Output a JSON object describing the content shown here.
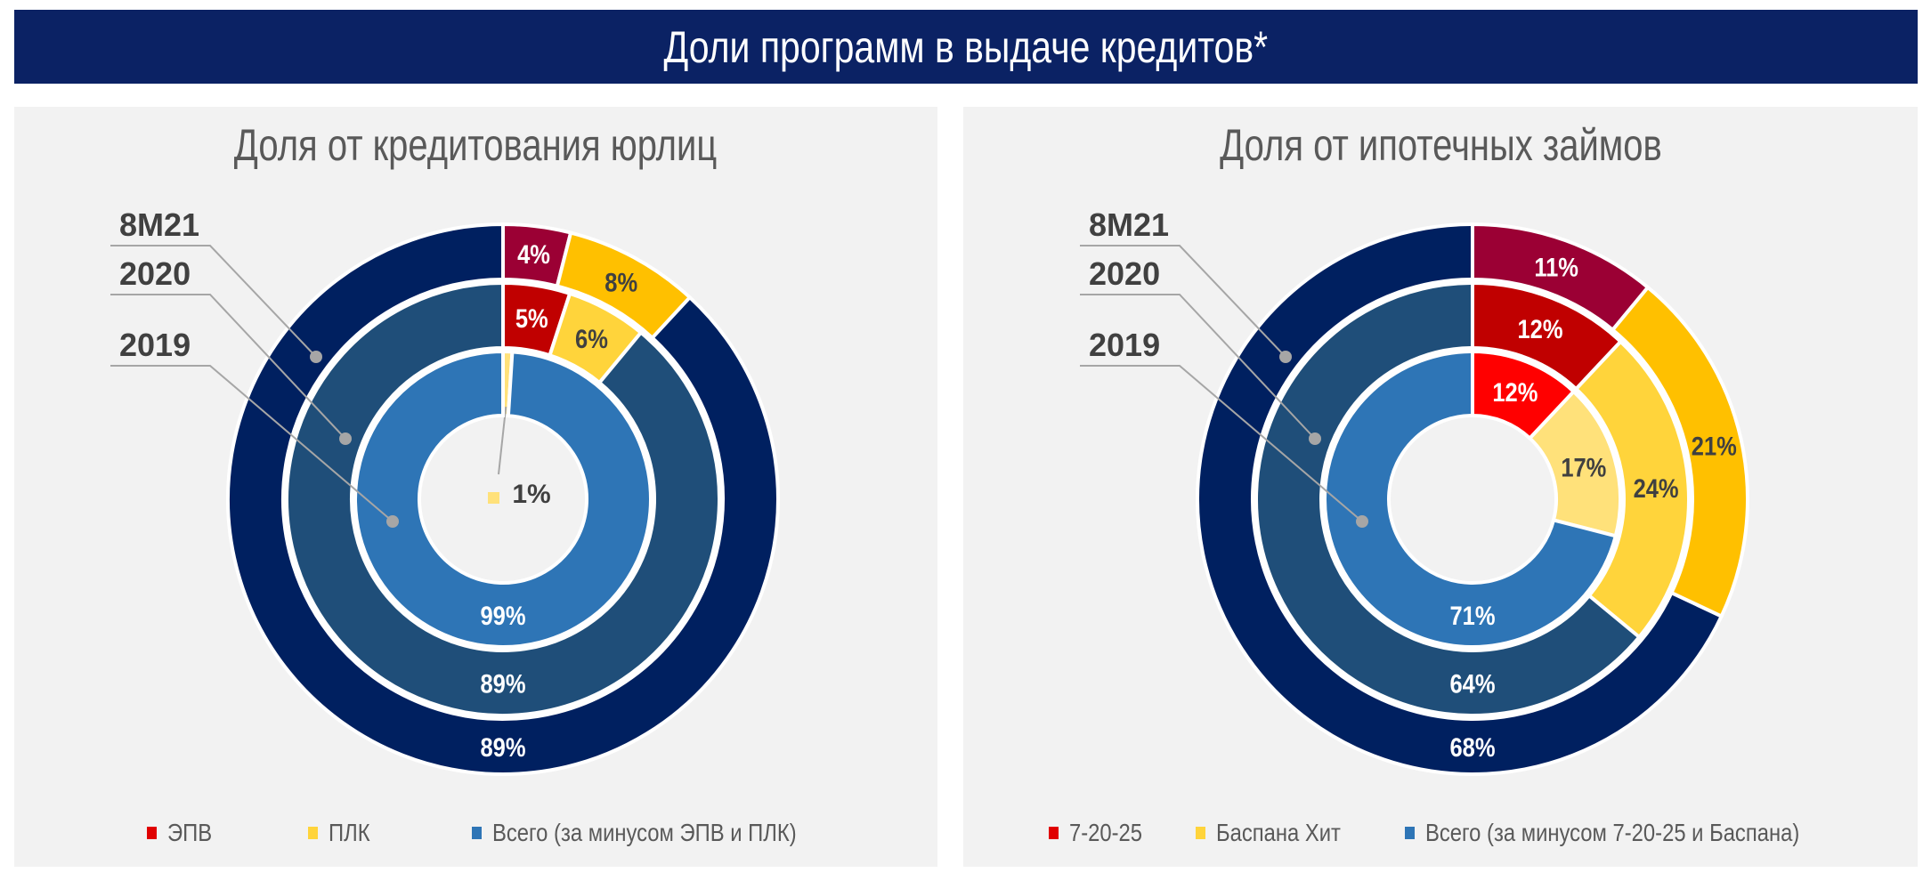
{
  "header": {
    "title": "Доли программ в выдаче кредитов*"
  },
  "chart_data": [
    {
      "type": "pie",
      "subtype": "multi-ring donut",
      "title": "Доля от кредитования юрлиц",
      "rings": [
        "8M21",
        "2020",
        "2019"
      ],
      "categories": [
        "ЭПВ",
        "ПЛК",
        "Всего (за минусом ЭПВ и ПЛК)"
      ],
      "series": [
        {
          "ring": "8M21",
          "values": [
            4,
            8,
            89
          ],
          "colors": [
            "#9B0034",
            "#FFC000",
            "#002060"
          ]
        },
        {
          "ring": "2020",
          "values": [
            5,
            6,
            89
          ],
          "colors": [
            "#C00000",
            "#FFD43B",
            "#1F4E79"
          ]
        },
        {
          "ring": "2019",
          "values": [
            0,
            1,
            99
          ],
          "colors": [
            "#FF0000",
            "#FFE17A",
            "#2E75B6"
          ]
        }
      ],
      "legend": "bottom",
      "legend_colors": [
        "#E00000",
        "#FFD43B",
        "#2E75B6"
      ]
    },
    {
      "type": "pie",
      "subtype": "multi-ring donut",
      "title": "Доля от ипотечных займов",
      "rings": [
        "8M21",
        "2020",
        "2019"
      ],
      "categories": [
        "7-20-25",
        "Баспана Хит",
        "Всего (за минусом 7-20-25 и Баспана)"
      ],
      "series": [
        {
          "ring": "8M21",
          "values": [
            11,
            21,
            68
          ],
          "colors": [
            "#9B0034",
            "#FFC000",
            "#002060"
          ]
        },
        {
          "ring": "2020",
          "values": [
            12,
            24,
            64
          ],
          "colors": [
            "#C00000",
            "#FFD43B",
            "#1F4E79"
          ]
        },
        {
          "ring": "2019",
          "values": [
            12,
            17,
            71
          ],
          "colors": [
            "#FF0000",
            "#FFE17A",
            "#2E75B6"
          ]
        }
      ],
      "legend": "bottom",
      "legend_colors": [
        "#E00000",
        "#FFD43B",
        "#2E75B6"
      ]
    }
  ]
}
